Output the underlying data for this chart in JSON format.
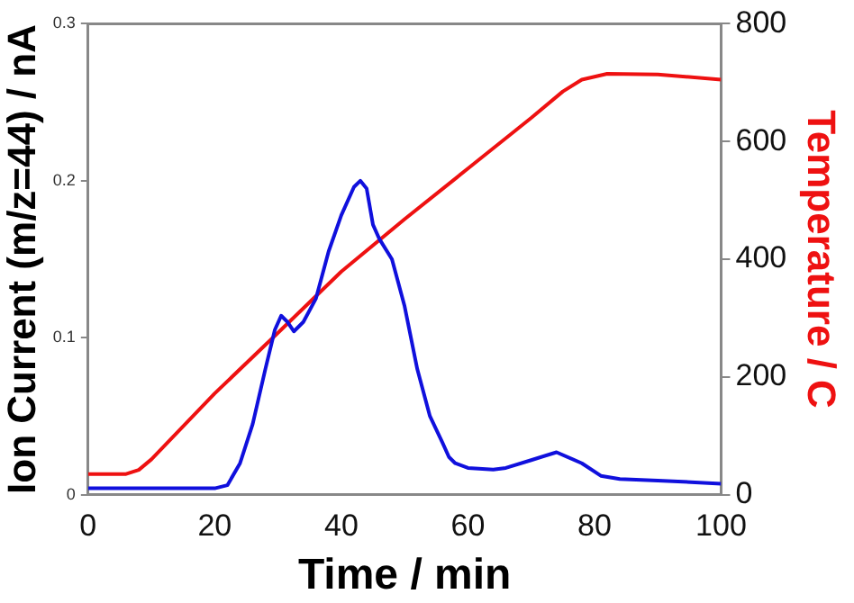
{
  "chart_data": {
    "type": "line",
    "xlabel": "Time / min",
    "ylabel": "Ion Current (m/z=44) / nA",
    "y2label": "Temperature / C",
    "xlim": [
      0,
      100
    ],
    "xticks": [
      0,
      20,
      40,
      60,
      80,
      100
    ],
    "ylim": [
      0,
      0.3
    ],
    "yticks": [
      0,
      0.1,
      0.2,
      0.3
    ],
    "y2lim": [
      0,
      800
    ],
    "y2ticks": [
      0,
      200,
      400,
      600,
      800
    ],
    "grid": false,
    "legend": false,
    "marker": "none",
    "line_style": "solid",
    "series": [
      {
        "color": "#1010dd",
        "x": [
          0,
          10,
          20,
          22,
          24,
          26,
          28,
          29.5,
          30.5,
          31.5,
          32.5,
          34,
          36,
          38,
          40,
          42,
          43,
          44,
          45,
          46,
          48,
          50,
          52,
          54,
          56,
          57,
          58,
          60,
          64,
          66,
          70,
          74,
          78,
          81,
          84,
          90,
          100
        ],
        "values": [
          0.004,
          0.004,
          0.004,
          0.006,
          0.02,
          0.045,
          0.08,
          0.105,
          0.114,
          0.11,
          0.104,
          0.11,
          0.125,
          0.155,
          0.178,
          0.196,
          0.2,
          0.195,
          0.172,
          0.163,
          0.15,
          0.12,
          0.08,
          0.05,
          0.033,
          0.024,
          0.02,
          0.017,
          0.016,
          0.017,
          0.022,
          0.027,
          0.02,
          0.012,
          0.01,
          0.009,
          0.007
        ]
      },
      {
        "color": "#ee1111",
        "axis": "y2",
        "x": [
          0,
          6,
          8,
          10,
          20,
          30,
          40,
          50,
          60,
          70,
          75,
          78,
          82,
          90,
          100
        ],
        "values": [
          35,
          35,
          42,
          60,
          172,
          275,
          379,
          468,
          554,
          640,
          685,
          705,
          715,
          714,
          705
        ]
      }
    ]
  }
}
